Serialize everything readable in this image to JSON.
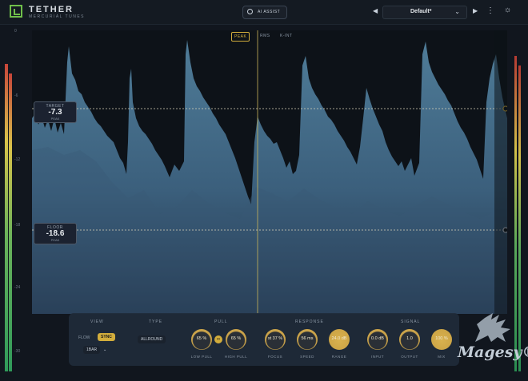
{
  "app": {
    "name": "TETHER",
    "subtitle": "MERCURIAL TUNES",
    "assist_label": "AI ASSIST",
    "preset": "Default*"
  },
  "colors": {
    "accent": "#d2ad3c",
    "brand_green": "#6fbf4a",
    "background": "#11161e"
  },
  "icons": {
    "logo": "logo-icon",
    "assist": "target-icon",
    "prev": "chevron-left-icon",
    "next": "chevron-right-icon",
    "dropdown": "chevron-down-icon",
    "menu": "kebab-menu-icon",
    "settings": "sun-gear-icon",
    "link": "link-icon"
  },
  "scale": {
    "labels": [
      "0",
      "-6",
      "-12",
      "-18",
      "-24",
      "-30"
    ]
  },
  "modes": [
    {
      "label": "PEAK",
      "active": true
    },
    {
      "label": "RMS",
      "active": false
    },
    {
      "label": "K-INT",
      "active": false
    }
  ],
  "target": {
    "title": "TARGET",
    "value": "-7.3",
    "sub": "PEAK"
  },
  "floor": {
    "title": "FLOOR",
    "value": "-18.6",
    "sub": "PEAK"
  },
  "controls": {
    "view": {
      "title": "VIEW",
      "flow": "FLOW",
      "sync": "SYNC",
      "rate": "1BAR"
    },
    "type": {
      "title": "TYPE",
      "value": "ALLROUND"
    },
    "pull": {
      "title": "PULL",
      "knobs": [
        {
          "value": "65 %",
          "label": "LOW PULL"
        },
        {
          "value": "65 %",
          "label": "HIGH PULL"
        }
      ]
    },
    "response": {
      "title": "RESPONSE",
      "knobs": [
        {
          "value": "st 37 %",
          "label": "FOCUS"
        },
        {
          "value": "56 ms",
          "label": "SPEED"
        },
        {
          "value": "24.0 dB",
          "label": "RANGE"
        }
      ]
    },
    "signal": {
      "title": "SIGNAL",
      "knobs": [
        {
          "value": "0.0 dB",
          "label": "INPUT"
        },
        {
          "value": "1.0",
          "label": "OUTPUT"
        },
        {
          "value": "100 %",
          "label": "MIX"
        }
      ]
    }
  },
  "watermark": "Magesy®"
}
